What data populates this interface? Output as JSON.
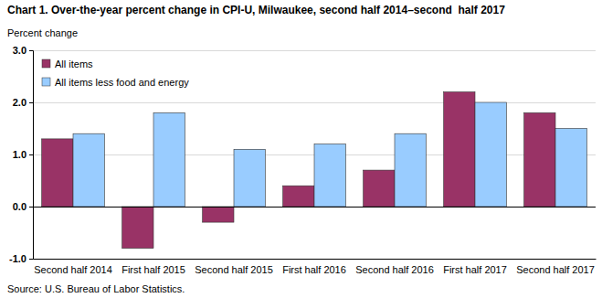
{
  "chart_data": {
    "type": "bar",
    "title": "Chart 1. Over-the-year percent change in CPI-U, Milwaukee, second half 2014–second  half 2017",
    "y_label": "Percent change",
    "source": "Source: U.S. Bureau of Labor Statistics.",
    "categories": [
      "Second half 2014",
      "First half 2015",
      "Second half 2015",
      "First half 2016",
      "Second half 2016",
      "First half 2017",
      "Second half 2017"
    ],
    "series": [
      {
        "name": "All items",
        "color": "#993366",
        "values": [
          1.3,
          -0.8,
          -0.3,
          0.4,
          0.7,
          2.2,
          1.8
        ]
      },
      {
        "name": "All items less food and energy",
        "color": "#99ccff",
        "values": [
          1.4,
          1.8,
          1.1,
          1.2,
          1.4,
          2.0,
          1.5
        ]
      }
    ],
    "ylim": [
      -1,
      3
    ],
    "yticks": [
      {
        "value": -1,
        "label": "-1.0"
      },
      {
        "value": 0,
        "label": "0.0"
      },
      {
        "value": 1,
        "label": "1.0"
      },
      {
        "value": 2,
        "label": "2.0"
      },
      {
        "value": 3,
        "label": "3.0"
      }
    ],
    "grid": true,
    "legend": "upper left"
  }
}
